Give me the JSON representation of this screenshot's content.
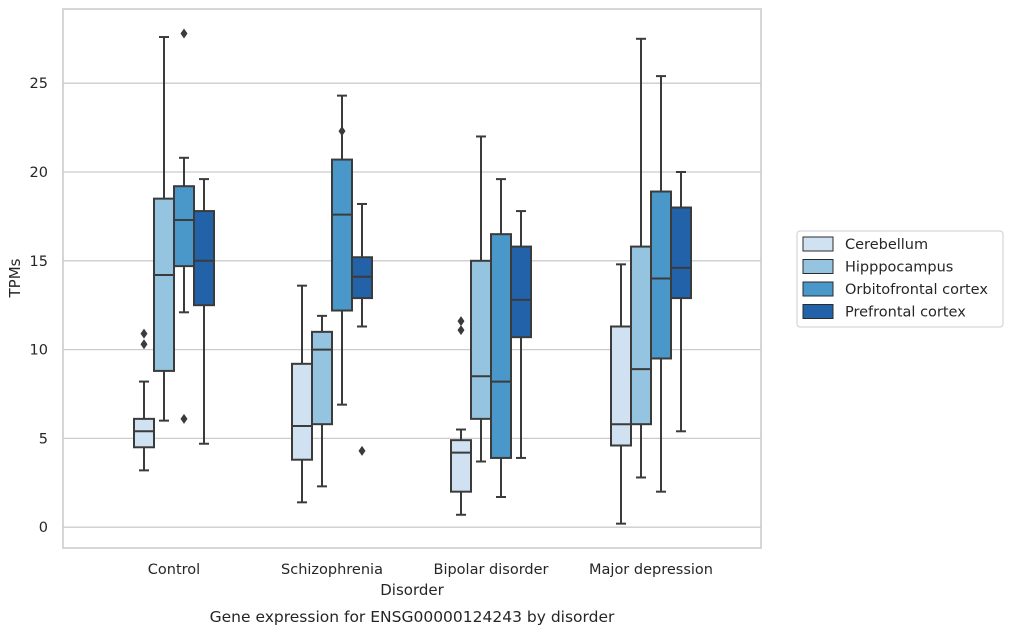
{
  "chart_data": {
    "type": "box",
    "caption": "Gene expression for ENSG00000124243 by disorder",
    "xlabel": "Disorder",
    "ylabel": "TPMs",
    "ylim": [
      -1.1,
      28.7
    ],
    "yticks": [
      0,
      5,
      10,
      15,
      20,
      25
    ],
    "grid": "horizontal",
    "legend_placement": "right",
    "categories": [
      "Control",
      "Schizophrenia",
      "Bipolar disorder",
      "Major depression"
    ],
    "series": [
      {
        "name": "Cerebellum",
        "color": "#d0e1f2",
        "boxes": [
          {
            "min": 3.2,
            "q1": 4.5,
            "median": 5.4,
            "q3": 6.1,
            "max": 8.2,
            "outliers": [
              10.3,
              10.9
            ]
          },
          {
            "min": 1.4,
            "q1": 3.8,
            "median": 5.7,
            "q3": 9.2,
            "max": 13.6,
            "outliers": []
          },
          {
            "min": 0.7,
            "q1": 2.0,
            "median": 4.2,
            "q3": 4.9,
            "max": 5.5,
            "outliers": [
              11.1,
              11.6
            ]
          },
          {
            "min": 0.2,
            "q1": 4.6,
            "median": 5.8,
            "q3": 11.3,
            "max": 14.8,
            "outliers": []
          }
        ]
      },
      {
        "name": "Hipppocampus",
        "color": "#94c4df",
        "boxes": [
          {
            "min": 6.0,
            "q1": 8.8,
            "median": 14.2,
            "q3": 18.5,
            "max": 27.6,
            "outliers": []
          },
          {
            "min": 2.3,
            "q1": 5.8,
            "median": 10.0,
            "q3": 11.0,
            "max": 11.9,
            "outliers": []
          },
          {
            "min": 3.7,
            "q1": 6.1,
            "median": 8.5,
            "q3": 15.0,
            "max": 22.0,
            "outliers": []
          },
          {
            "min": 2.8,
            "q1": 5.8,
            "median": 8.9,
            "q3": 15.8,
            "max": 27.5,
            "outliers": []
          }
        ]
      },
      {
        "name": "Orbitofrontal cortex",
        "color": "#4a98c9",
        "boxes": [
          {
            "min": 12.1,
            "q1": 14.7,
            "median": 17.3,
            "q3": 19.2,
            "max": 20.8,
            "outliers": [
              6.1,
              27.8
            ]
          },
          {
            "min": 6.9,
            "q1": 12.2,
            "median": 17.6,
            "q3": 20.7,
            "max": 24.3,
            "outliers": [
              22.3
            ]
          },
          {
            "min": 1.7,
            "q1": 3.9,
            "median": 8.2,
            "q3": 16.5,
            "max": 19.6,
            "outliers": []
          },
          {
            "min": 2.0,
            "q1": 9.5,
            "median": 14.0,
            "q3": 18.9,
            "max": 25.4,
            "outliers": []
          }
        ]
      },
      {
        "name": "Prefrontal cortex",
        "color": "#2262a8",
        "boxes": [
          {
            "min": 4.7,
            "q1": 12.5,
            "median": 15.0,
            "q3": 17.8,
            "max": 19.6,
            "outliers": []
          },
          {
            "min": 11.3,
            "q1": 12.9,
            "median": 14.1,
            "q3": 15.2,
            "max": 18.2,
            "outliers": [
              4.3
            ]
          },
          {
            "min": 3.9,
            "q1": 10.7,
            "median": 12.8,
            "q3": 15.8,
            "max": 17.8,
            "outliers": []
          },
          {
            "min": 5.4,
            "q1": 12.9,
            "median": 14.6,
            "q3": 18.0,
            "max": 20.0,
            "outliers": []
          }
        ]
      }
    ]
  }
}
